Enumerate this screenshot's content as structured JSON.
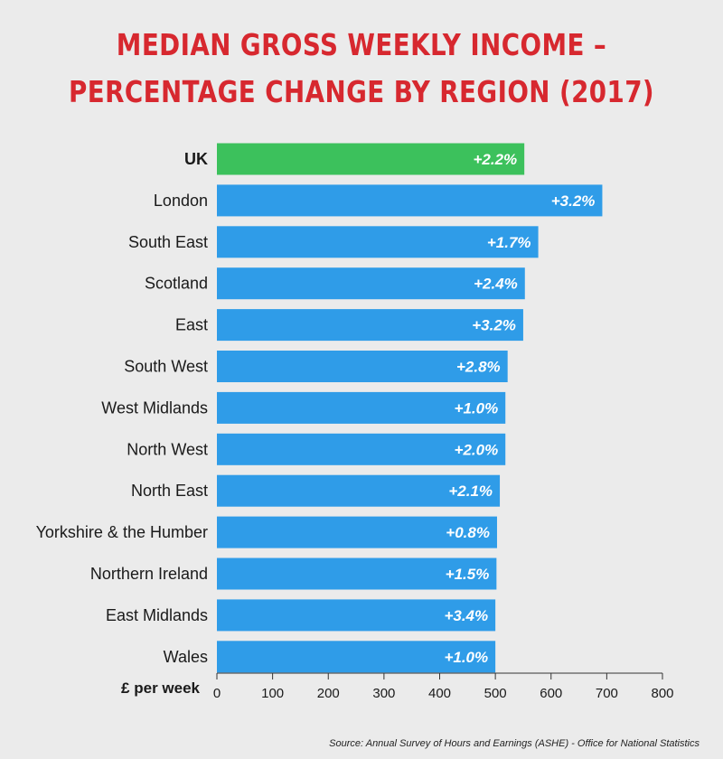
{
  "chart_data": {
    "type": "bar",
    "orientation": "horizontal",
    "title_lines": [
      "MEDIAN GROSS WEEKLY INCOME –",
      "PERCENTAGE CHANGE BY REGION (2017)"
    ],
    "xlabel": "£ per week",
    "xlim": [
      0,
      800
    ],
    "xticks": [
      0,
      100,
      200,
      300,
      400,
      500,
      600,
      700,
      800
    ],
    "categories": [
      "UK",
      "London",
      "South East",
      "Scotland",
      "East",
      "South West",
      "West Midlands",
      "North West",
      "North East",
      "Yorkshire & the Humber",
      "Northern Ireland",
      "East Midlands",
      "Wales"
    ],
    "values": [
      552,
      692,
      577,
      553,
      550,
      522,
      518,
      518,
      508,
      503,
      502,
      500,
      500
    ],
    "data_labels": [
      "+2.2%",
      "+3.2%",
      "+1.7%",
      "+2.4%",
      "+3.2%",
      "+2.8%",
      "+1.0%",
      "+2.0%",
      "+2.1%",
      "+0.8%",
      "+1.5%",
      "+3.4%",
      "+1.0%"
    ],
    "highlight_category": "UK",
    "colors": {
      "highlight": "#3cc15c",
      "bar": "#2f9ce8",
      "title": "#d7282f"
    },
    "grid": false
  },
  "source": "Source: Annual Survey of Hours and Earnings (ASHE) - Office for National Statistics"
}
